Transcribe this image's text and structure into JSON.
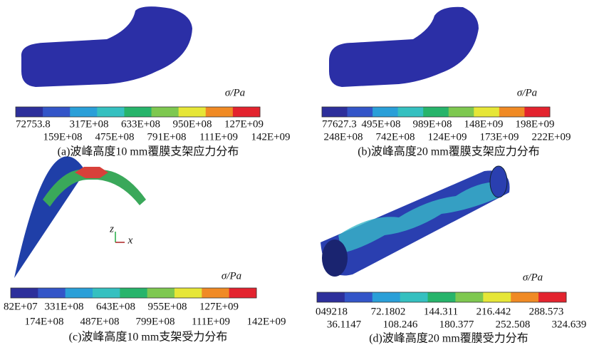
{
  "panels": [
    {
      "caption": "(a)波峰高度10 mm覆膜支架应力分布",
      "unit": "σ/Pa",
      "labels_top": [
        "72753.8",
        "317E+08",
        "633E+08",
        "950E+08",
        "127E+09"
      ],
      "labels_bottom": [
        "159E+08",
        "475E+08",
        "791E+08",
        "111E+09",
        "142E+09"
      ]
    },
    {
      "caption": "(b)波峰高度20 mm覆膜支架应力分布",
      "unit": "σ/Pa",
      "labels_top": [
        "77627.3",
        "495E+08",
        "989E+08",
        "148E+09",
        "198E+09"
      ],
      "labels_bottom": [
        "248E+08",
        "742E+08",
        "124E+09",
        "173E+09",
        "222E+09"
      ]
    },
    {
      "caption": "(c)波峰高度10 mm支架受力分布",
      "unit": "σ/Pa",
      "labels_top": [
        "82E+07",
        "331E+08",
        "643E+08",
        "955E+08",
        "127E+09"
      ],
      "labels_bottom": [
        "174E+08",
        "487E+08",
        "799E+08",
        "111E+09",
        "142E+09"
      ]
    },
    {
      "caption": "(d)波峰高度20 mm覆膜受力分布",
      "unit": "σ/Pa",
      "labels_top": [
        "049218",
        "72.1802",
        "144.311",
        "216.442",
        "288.573"
      ],
      "labels_bottom": [
        "36.1147",
        "108.246",
        "180.377",
        "252.508",
        "324.639"
      ]
    }
  ],
  "triad": {
    "z": "z",
    "x": "x"
  }
}
